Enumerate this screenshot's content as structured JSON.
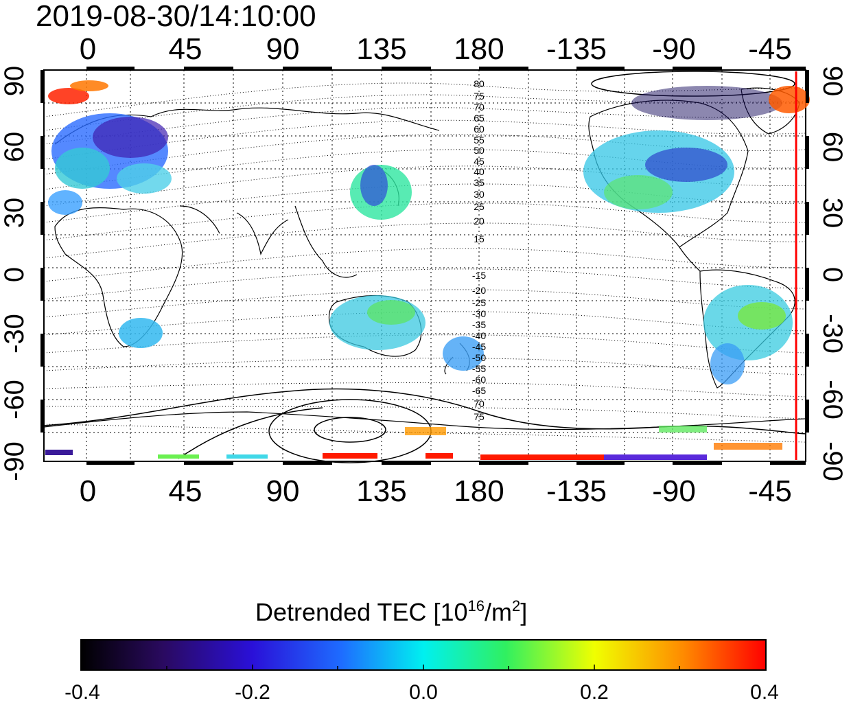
{
  "title": "2019-08-30/14:10:00",
  "map": {
    "top_ticks": [
      "0",
      "45",
      "90",
      "135",
      "180",
      "-135",
      "-90",
      "-45"
    ],
    "bottom_ticks": [
      "0",
      "45",
      "90",
      "135",
      "180",
      "-135",
      "-90",
      "-45"
    ],
    "left_ticks": [
      "90",
      "60",
      "30",
      "0",
      "-30",
      "-60",
      "-90"
    ],
    "right_ticks": [
      "90",
      "60",
      "30",
      "0",
      "-30",
      "-60",
      "-90"
    ],
    "contour_labels_north": [
      "80",
      "75",
      "70",
      "65",
      "60",
      "55",
      "50",
      "45",
      "40",
      "35",
      "30",
      "25",
      "20",
      "15"
    ],
    "contour_labels_south": [
      "-15",
      "-20",
      "-25",
      "-30",
      "-35",
      "-40",
      "-45",
      "-50",
      "-55",
      "-60",
      "-65",
      "70",
      "75"
    ],
    "terminator_color": "#ff0000"
  },
  "colorbar": {
    "title_main": "Detrended TEC  [10",
    "title_exp": "16",
    "title_unit": "/m",
    "title_exp2": "2",
    "title_end": "]",
    "tick_labels": [
      "-0.4",
      "-0.2",
      "0.0",
      "0.2",
      "0.4"
    ],
    "range": [
      -0.4,
      0.4
    ]
  }
}
